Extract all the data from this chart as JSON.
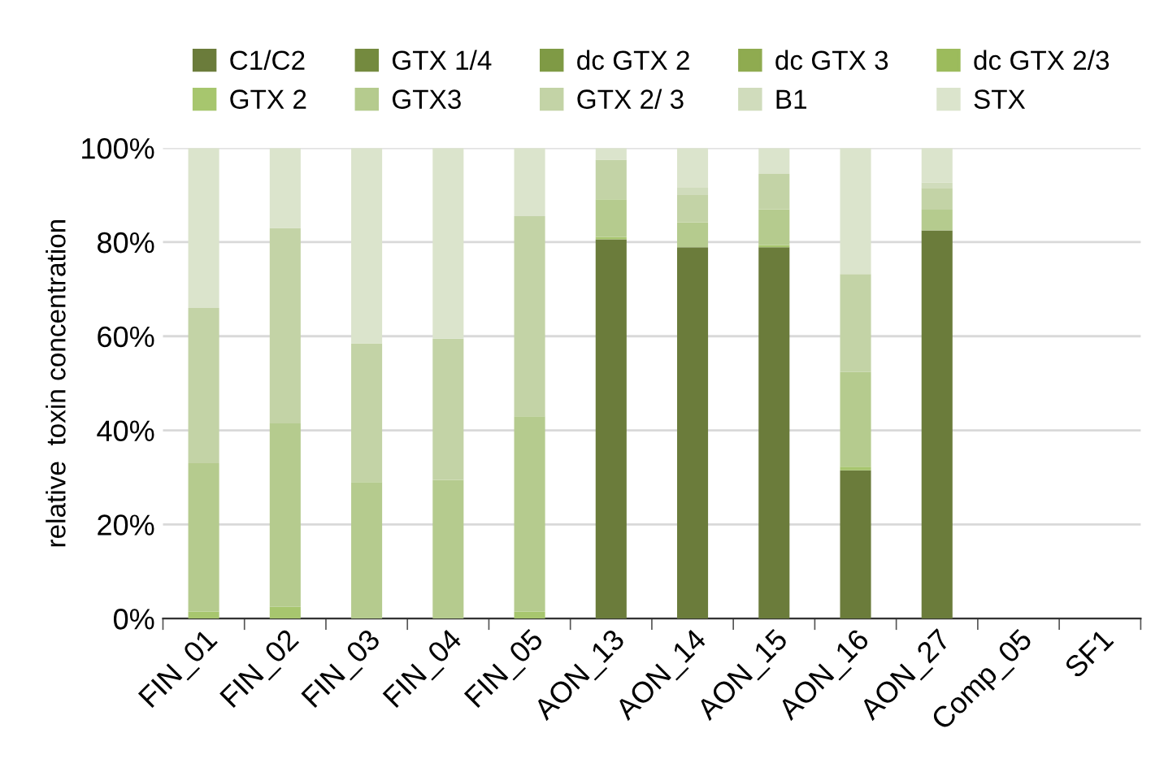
{
  "chart_data": {
    "type": "bar",
    "stacked": true,
    "ylabel": "relative  toxin concentration",
    "categories": [
      "FIN_01",
      "FIN_02",
      "FIN_03",
      "FIN_04",
      "FIN_05",
      "AON_13",
      "AON_14",
      "AON_15",
      "AON_16",
      "AON_27",
      "Comp_05",
      "SF1"
    ],
    "series": [
      {
        "name": "C1/C2",
        "color": "#6b7c3b",
        "values": [
          0,
          0,
          0,
          0,
          0,
          80.6,
          78.9,
          78.9,
          31.5,
          82.5,
          0,
          0
        ]
      },
      {
        "name": "GTX 1/4",
        "color": "#748a3f",
        "values": [
          0,
          0,
          0,
          0,
          0,
          0,
          0,
          0,
          0,
          0,
          0,
          0
        ]
      },
      {
        "name": "dc GTX 2",
        "color": "#7f9a45",
        "values": [
          0,
          0,
          0,
          0,
          0,
          0,
          0,
          0,
          0,
          0,
          0,
          0
        ]
      },
      {
        "name": "dc GTX 3",
        "color": "#8fab50",
        "values": [
          0,
          0,
          0,
          0,
          0,
          0,
          0,
          0,
          0,
          0,
          0,
          0
        ]
      },
      {
        "name": "dc GTX 2/3",
        "color": "#9cbb5c",
        "values": [
          0,
          0,
          0,
          0,
          0,
          0,
          0,
          0,
          0,
          0,
          0,
          0
        ]
      },
      {
        "name": "GTX 2",
        "color": "#a7c66e",
        "values": [
          1.5,
          2.5,
          0,
          0,
          1.5,
          0.5,
          0,
          0.5,
          0.8,
          0,
          0,
          0
        ]
      },
      {
        "name": "GTX3",
        "color": "#b5cb8e",
        "values": [
          31.5,
          39,
          29,
          29.5,
          41.5,
          8,
          5.3,
          7.6,
          20.1,
          4.4,
          0,
          0
        ]
      },
      {
        "name": "GTX 2/ 3",
        "color": "#c3d3a6",
        "values": [
          33,
          41.5,
          29.5,
          30,
          42.5,
          8.4,
          5.8,
          7.5,
          20.8,
          4.6,
          0,
          0
        ]
      },
      {
        "name": "B1",
        "color": "#d0dcbc",
        "values": [
          0,
          0,
          0,
          0,
          0,
          0,
          1.7,
          0,
          0,
          1.2,
          0,
          0
        ]
      },
      {
        "name": "STX",
        "color": "#dbe4cc",
        "values": [
          34,
          17,
          41.5,
          40.5,
          14.5,
          2.5,
          8.3,
          5.5,
          26.8,
          7.3,
          0,
          0
        ]
      }
    ],
    "ylim": [
      0,
      100
    ],
    "yticks": [
      {
        "value": 0,
        "label": "0%"
      },
      {
        "value": 20,
        "label": "20%"
      },
      {
        "value": 40,
        "label": "40%"
      },
      {
        "value": 60,
        "label": "60%"
      },
      {
        "value": 80,
        "label": "80%"
      },
      {
        "value": 100,
        "label": "100%"
      }
    ],
    "grid": "y",
    "legend": "top"
  }
}
